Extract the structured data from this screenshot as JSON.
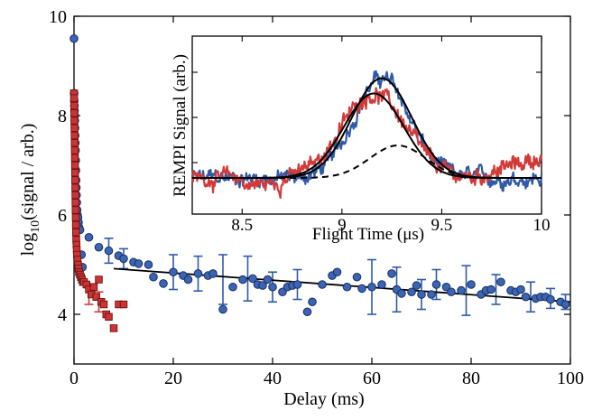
{
  "colors": {
    "blue": "#2e5aa6",
    "blue_fill": "#3a64b4",
    "red": "#d23a3a",
    "red_fill": "#cc3333",
    "fit": "#000000"
  },
  "chart_data": [
    {
      "type": "scatter",
      "xlabel": "Delay (ms)",
      "ylabel_main": "log",
      "ylabel_sub": "10",
      "ylabel_rest": "(signal / arb.)",
      "xlim": [
        0,
        100
      ],
      "ylim": [
        3,
        10
      ],
      "xticks": [
        0,
        20,
        40,
        60,
        80,
        100
      ],
      "yticks": [
        4,
        6,
        8,
        10
      ],
      "grid": false,
      "series": [
        {
          "marker": "circle",
          "color": "blue",
          "points": [
            [
              0,
              9.55
            ],
            [
              0.02,
              8.45
            ],
            [
              0.05,
              8.3
            ],
            [
              0.08,
              8.2
            ],
            [
              0.1,
              8.1
            ],
            [
              0.13,
              8.0
            ],
            [
              0.16,
              7.9
            ],
            [
              0.19,
              7.75
            ],
            [
              0.22,
              7.6
            ],
            [
              0.26,
              7.45
            ],
            [
              0.3,
              7.3
            ],
            [
              0.34,
              7.1
            ],
            [
              0.38,
              6.9
            ],
            [
              0.42,
              6.7
            ],
            [
              0.46,
              6.55
            ],
            [
              0.5,
              6.4
            ],
            [
              0.56,
              6.25
            ],
            [
              0.62,
              6.1
            ],
            [
              0.7,
              6.0
            ],
            [
              0.8,
              5.95
            ],
            [
              0.9,
              5.85
            ],
            [
              1.0,
              5.75
            ],
            [
              1.2,
              5.7
            ],
            [
              1.5,
              5.2
            ],
            [
              1.7,
              4.95
            ],
            [
              3,
              5.55
            ],
            [
              5,
              5.35
            ],
            [
              7,
              5.28
            ],
            [
              9,
              5.18
            ],
            [
              10,
              5.12
            ],
            [
              12,
              5.05
            ],
            [
              13,
              5.02
            ],
            [
              15,
              5.0
            ],
            [
              16,
              4.75
            ],
            [
              18,
              4.62
            ],
            [
              20,
              4.85
            ],
            [
              22,
              4.78
            ],
            [
              23,
              4.7
            ],
            [
              25,
              4.82
            ],
            [
              27,
              4.78
            ],
            [
              28,
              4.82
            ],
            [
              30,
              4.1
            ],
            [
              32,
              4.55
            ],
            [
              34,
              4.7
            ],
            [
              36,
              4.72
            ],
            [
              37,
              4.6
            ],
            [
              38,
              4.58
            ],
            [
              39,
              4.7
            ],
            [
              40,
              4.55
            ],
            [
              42,
              4.45
            ],
            [
              43,
              4.55
            ],
            [
              44,
              4.58
            ],
            [
              45,
              4.6
            ],
            [
              47,
              4.05
            ],
            [
              48,
              4.25
            ],
            [
              50,
              4.6
            ],
            [
              52,
              4.78
            ],
            [
              53,
              4.85
            ],
            [
              55,
              4.55
            ],
            [
              57,
              4.75
            ],
            [
              58,
              4.52
            ],
            [
              60,
              4.55
            ],
            [
              62,
              4.6
            ],
            [
              64,
              4.82
            ],
            [
              65,
              4.5
            ],
            [
              66,
              4.42
            ],
            [
              68,
              4.45
            ],
            [
              69,
              4.58
            ],
            [
              70,
              4.4
            ],
            [
              72,
              4.4
            ],
            [
              73,
              4.6
            ],
            [
              75,
              4.55
            ],
            [
              76,
              4.45
            ],
            [
              78,
              4.48
            ],
            [
              80,
              4.6
            ],
            [
              82,
              4.4
            ],
            [
              83,
              4.48
            ],
            [
              84,
              4.5
            ],
            [
              86,
              4.65
            ],
            [
              88,
              4.48
            ],
            [
              89,
              4.45
            ],
            [
              90,
              4.5
            ],
            [
              91,
              4.35
            ],
            [
              93,
              4.32
            ],
            [
              94,
              4.35
            ],
            [
              95,
              4.35
            ],
            [
              96,
              4.3
            ],
            [
              98,
              4.25
            ],
            [
              99,
              4.2
            ]
          ],
          "errorbars": [
            [
              7,
              5.28,
              0.25
            ],
            [
              10,
              5.12,
              0.2
            ],
            [
              20,
              4.85,
              0.35
            ],
            [
              25,
              4.82,
              0.35
            ],
            [
              30,
              4.7,
              0.5
            ],
            [
              35,
              4.72,
              0.45
            ],
            [
              40,
              4.55,
              0.3
            ],
            [
              45,
              4.6,
              0.3
            ],
            [
              60,
              4.55,
              0.55
            ],
            [
              65,
              4.5,
              0.45
            ],
            [
              70,
              4.4,
              0.3
            ],
            [
              73,
              4.6,
              0.3
            ],
            [
              79,
              4.48,
              0.5
            ],
            [
              85,
              4.5,
              0.3
            ],
            [
              92,
              4.35,
              0.3
            ],
            [
              96,
              4.32,
              0.2
            ],
            [
              99,
              4.25,
              0.15
            ]
          ]
        },
        {
          "marker": "square",
          "color": "red",
          "points": [
            [
              0,
              8.45
            ],
            [
              0.02,
              8.35
            ],
            [
              0.04,
              8.2
            ],
            [
              0.06,
              8.05
            ],
            [
              0.08,
              7.9
            ],
            [
              0.1,
              7.75
            ],
            [
              0.12,
              7.6
            ],
            [
              0.14,
              7.45
            ],
            [
              0.16,
              7.3
            ],
            [
              0.18,
              7.15
            ],
            [
              0.2,
              7.0
            ],
            [
              0.22,
              6.85
            ],
            [
              0.24,
              6.7
            ],
            [
              0.26,
              6.55
            ],
            [
              0.28,
              6.4
            ],
            [
              0.3,
              6.25
            ],
            [
              0.32,
              6.1
            ],
            [
              0.35,
              5.95
            ],
            [
              0.38,
              5.8
            ],
            [
              0.41,
              5.65
            ],
            [
              0.45,
              5.5
            ],
            [
              0.5,
              5.4
            ],
            [
              0.55,
              5.3
            ],
            [
              0.6,
              5.2
            ],
            [
              0.7,
              5.1
            ],
            [
              0.8,
              5.0
            ],
            [
              0.9,
              4.92
            ],
            [
              1.0,
              4.85
            ],
            [
              1.2,
              4.8
            ],
            [
              1.4,
              4.75
            ],
            [
              1.6,
              4.7
            ],
            [
              1.8,
              4.65
            ],
            [
              2.0,
              4.65
            ],
            [
              2.5,
              4.6
            ],
            [
              3,
              4.5
            ],
            [
              3.5,
              4.4
            ],
            [
              4,
              4.55
            ],
            [
              4.5,
              4.35
            ],
            [
              5,
              4.7
            ],
            [
              5.5,
              4.25
            ],
            [
              6,
              4.2
            ],
            [
              6.5,
              4.0
            ],
            [
              7,
              3.95
            ],
            [
              8,
              3.72
            ],
            [
              9,
              4.2
            ],
            [
              10,
              4.2
            ]
          ],
          "errorbars": [
            [
              3,
              4.4,
              0.2
            ],
            [
              5,
              4.25,
              0.2
            ]
          ]
        }
      ],
      "fit": {
        "x": [
          8,
          100
        ],
        "y": [
          4.92,
          4.25
        ]
      }
    },
    {
      "type": "line",
      "xlabel": "Flight Time (μs)",
      "ylabel": "REMPI Signal (arb.)",
      "xlim": [
        8.25,
        10.0
      ],
      "xticks": [
        "8.5",
        "9",
        "9.5",
        "10"
      ],
      "ylim": [
        0,
        1.2
      ],
      "series": [
        {
          "color": "blue",
          "center": 9.2,
          "width": 0.14,
          "amp": 0.92,
          "noise": 0.05
        },
        {
          "color": "red",
          "center": 9.16,
          "width": 0.16,
          "amp": 0.78,
          "noise": 0.05
        }
      ],
      "fits": [
        {
          "style": "solid",
          "center": 9.2,
          "width": 0.15,
          "amp": 0.92
        },
        {
          "style": "solid",
          "center": 9.16,
          "width": 0.15,
          "amp": 0.78
        },
        {
          "style": "dashed",
          "center": 9.28,
          "width": 0.14,
          "amp": 0.3
        }
      ]
    }
  ]
}
